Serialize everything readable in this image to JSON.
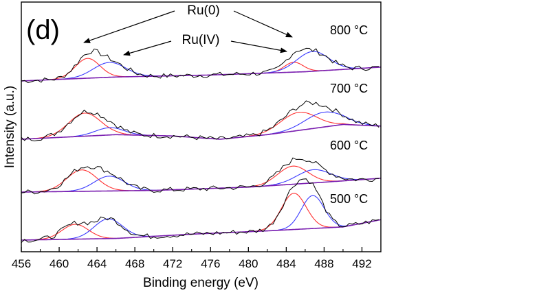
{
  "chart_data": {
    "type": "line",
    "panel_label": "(d)",
    "xlabel": "Binding energy (eV)",
    "ylabel": "Intensity (a.u.)",
    "xlim": [
      456,
      494
    ],
    "x_ticks": [
      456,
      460,
      464,
      468,
      472,
      476,
      480,
      484,
      488,
      492
    ],
    "y_ticks_shown": false,
    "annotations": [
      {
        "text": "Ru(0)",
        "points_to": [
          463.0,
          487.0
        ]
      },
      {
        "text": "Ru(IV)",
        "points_to": [
          465.5,
          484.5
        ]
      }
    ],
    "colors": {
      "raw": "#000000",
      "ru0_fit": "#ff3030",
      "ru4_fit": "#3a3aff",
      "envelope": "#7a1fb0"
    },
    "spectra": [
      {
        "temperature": "800 °C",
        "peaks": [
          {
            "species": "Ru(0)",
            "center": 463.0,
            "height": 0.6,
            "width": 1.3
          },
          {
            "species": "Ru(IV)",
            "center": 465.3,
            "height": 0.45,
            "width": 1.7
          },
          {
            "species": "Ru(0)",
            "center": 484.8,
            "height": 0.3,
            "width": 1.0
          },
          {
            "species": "Ru(IV)",
            "center": 486.8,
            "height": 0.6,
            "width": 1.7
          }
        ],
        "background": [
          [
            456,
            0.0
          ],
          [
            466,
            0.12
          ],
          [
            476,
            0.18
          ],
          [
            486,
            0.28
          ],
          [
            494,
            0.42
          ]
        ]
      },
      {
        "temperature": "700 °C",
        "peaks": [
          {
            "species": "Ru(0)",
            "center": 462.7,
            "height": 0.7,
            "width": 1.7
          },
          {
            "species": "Ru(IV)",
            "center": 465.3,
            "height": 0.22,
            "width": 1.5
          },
          {
            "species": "Ru(0)",
            "center": 485.3,
            "height": 0.55,
            "width": 1.9
          },
          {
            "species": "Ru(IV)",
            "center": 488.0,
            "height": 0.45,
            "width": 2.0
          }
        ],
        "background": [
          [
            456,
            0.0
          ],
          [
            466,
            0.14
          ],
          [
            472,
            0.1
          ],
          [
            477,
            0.0
          ],
          [
            482,
            0.14
          ],
          [
            490,
            0.45
          ],
          [
            494,
            0.4
          ]
        ]
      },
      {
        "temperature": "600 °C",
        "peaks": [
          {
            "species": "Ru(0)",
            "center": 462.4,
            "height": 0.65,
            "width": 1.6
          },
          {
            "species": "Ru(IV)",
            "center": 465.3,
            "height": 0.45,
            "width": 1.6
          },
          {
            "species": "Ru(0)",
            "center": 484.7,
            "height": 0.55,
            "width": 1.6
          },
          {
            "species": "Ru(IV)",
            "center": 486.9,
            "height": 0.4,
            "width": 1.8
          }
        ],
        "background": [
          [
            456,
            0.0
          ],
          [
            470,
            0.05
          ],
          [
            480,
            0.15
          ],
          [
            488,
            0.3
          ],
          [
            494,
            0.42
          ]
        ]
      },
      {
        "temperature": "500 °C",
        "peaks": [
          {
            "species": "Ru(0)",
            "center": 461.7,
            "height": 0.45,
            "width": 1.4
          },
          {
            "species": "Ru(IV)",
            "center": 465.2,
            "height": 0.6,
            "width": 1.5
          },
          {
            "species": "Ru(0)",
            "center": 484.8,
            "height": 1.1,
            "width": 1.3
          },
          {
            "species": "Ru(IV)",
            "center": 486.8,
            "height": 1.0,
            "width": 1.2
          }
        ],
        "background": [
          [
            456,
            0.0
          ],
          [
            466,
            0.05
          ],
          [
            474,
            0.18
          ],
          [
            482,
            0.28
          ],
          [
            490,
            0.4
          ],
          [
            494,
            0.62
          ]
        ]
      }
    ]
  }
}
